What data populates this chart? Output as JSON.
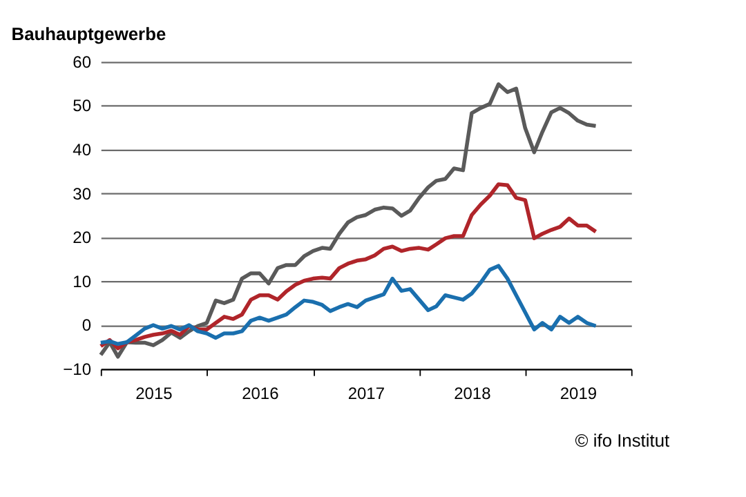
{
  "chart_data": {
    "type": "line",
    "title": "Bauhauptgewerbe",
    "x": [
      "2015-01",
      "2015-02",
      "2015-03",
      "2015-04",
      "2015-05",
      "2015-06",
      "2015-07",
      "2015-08",
      "2015-09",
      "2015-10",
      "2015-11",
      "2015-12",
      "2016-01",
      "2016-02",
      "2016-03",
      "2016-04",
      "2016-05",
      "2016-06",
      "2016-07",
      "2016-08",
      "2016-09",
      "2016-10",
      "2016-11",
      "2016-12",
      "2017-01",
      "2017-02",
      "2017-03",
      "2017-04",
      "2017-05",
      "2017-06",
      "2017-07",
      "2017-08",
      "2017-09",
      "2017-10",
      "2017-11",
      "2017-12",
      "2018-01",
      "2018-02",
      "2018-03",
      "2018-04",
      "2018-05",
      "2018-06",
      "2018-07",
      "2018-08",
      "2018-09",
      "2018-10",
      "2018-11",
      "2018-12",
      "2019-01",
      "2019-02",
      "2019-03",
      "2019-04",
      "2019-05",
      "2019-06",
      "2019-07",
      "2019-08",
      "2019-09"
    ],
    "series": [
      {
        "color": "#5a5a5a",
        "values": [
          -6.8,
          -3.9,
          -7.2,
          -3.9,
          -4,
          -4,
          -4.6,
          -3.4,
          -1.7,
          -2.9,
          -1.4,
          -0.2,
          0.5,
          5.6,
          5,
          5.8,
          10.6,
          11.8,
          11.8,
          9.5,
          13,
          13.7,
          13.7,
          15.7,
          16.9,
          17.6,
          17.4,
          20.8,
          23.4,
          24.6,
          25.1,
          26.3,
          26.8,
          26.6,
          24.9,
          26.1,
          29,
          31.4,
          32.9,
          33.3,
          35.7,
          35.3,
          48.3,
          49.5,
          50.4,
          54.9,
          53.1,
          53.9,
          44.9,
          39.4,
          44,
          48.5,
          49.5,
          48.3,
          46.6,
          45.7,
          45.4
        ]
      },
      {
        "color": "#b0252a",
        "values": [
          -4.8,
          -3.4,
          -5.3,
          -3.9,
          -3.4,
          -2.7,
          -2.2,
          -1.9,
          -1.3,
          -2.2,
          -0.2,
          -1,
          -1,
          0.5,
          1.9,
          1.4,
          2.4,
          5.8,
          6.8,
          6.8,
          5.8,
          7.7,
          9.2,
          10.1,
          10.6,
          10.8,
          10.6,
          13,
          14,
          14.7,
          15,
          15.9,
          17.4,
          17.9,
          16.9,
          17.4,
          17.6,
          17.2,
          18.4,
          19.8,
          20.3,
          20.3,
          25.1,
          27.5,
          29.5,
          32.1,
          31.9,
          29,
          28.5,
          19.8,
          20.8,
          21.7,
          22.4,
          24.3,
          22.7,
          22.7,
          21.3
        ]
      },
      {
        "color": "#1a6fae",
        "values": [
          -4,
          -3.7,
          -4.3,
          -3.9,
          -2.4,
          -0.8,
          0,
          -0.8,
          -0.2,
          -1,
          0,
          -1.4,
          -1.9,
          -2.9,
          -1.9,
          -1.9,
          -1.4,
          1,
          1.7,
          1,
          1.7,
          2.4,
          4.1,
          5.6,
          5.3,
          4.6,
          3.2,
          4.1,
          4.8,
          4.1,
          5.6,
          6.3,
          7,
          10.6,
          7.8,
          8.2,
          5.8,
          3.4,
          4.3,
          6.8,
          6.3,
          5.8,
          7.2,
          9.7,
          12.6,
          13.5,
          10.6,
          6.8,
          2.9,
          -1,
          0.5,
          -1,
          1.9,
          0.5,
          1.9,
          0.5,
          -0.2
        ]
      }
    ],
    "xlim": [
      "2015-01",
      "2020-01"
    ],
    "xticks": [
      {
        "value": "2015-01",
        "label": null
      },
      {
        "value": "2015-07",
        "label": "2015"
      },
      {
        "value": "2016-01",
        "label": null
      },
      {
        "value": "2016-07",
        "label": "2016"
      },
      {
        "value": "2017-01",
        "label": null
      },
      {
        "value": "2017-07",
        "label": "2017"
      },
      {
        "value": "2018-01",
        "label": null
      },
      {
        "value": "2018-07",
        "label": "2018"
      },
      {
        "value": "2019-01",
        "label": null
      },
      {
        "value": "2019-07",
        "label": "2019"
      },
      {
        "value": "2020-01",
        "label": null
      }
    ],
    "ylim": [
      -10,
      60
    ],
    "yticks": [
      -10,
      0,
      10,
      20,
      30,
      40,
      50,
      60
    ],
    "grid": "y",
    "legend": false,
    "marker": "none",
    "line_style": "solid",
    "annotations": [
      "© ifo Institut"
    ]
  }
}
